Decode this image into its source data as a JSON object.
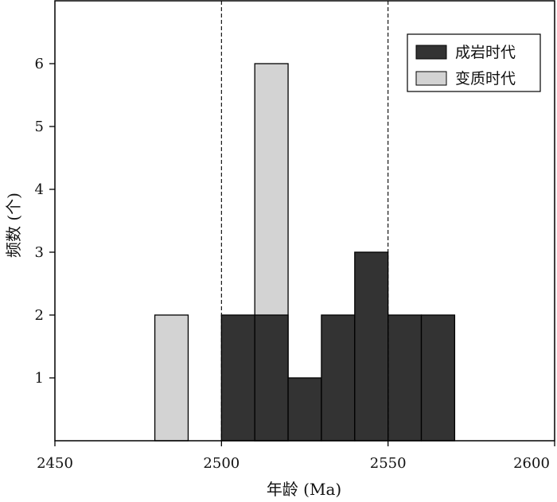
{
  "chart_data": {
    "type": "bar",
    "xlabel": "年龄 (Ma)",
    "ylabel": "频数 (个)",
    "xlim": [
      2450,
      2600
    ],
    "ylim": [
      0,
      7
    ],
    "xticks": [
      2450,
      2500,
      2550,
      2600
    ],
    "yticks": [
      1,
      2,
      3,
      4,
      5,
      6
    ],
    "reference_lines_x": [
      2500,
      2550
    ],
    "legend_position": "top-right",
    "grid": false,
    "series": [
      {
        "name": "成岩时代",
        "color": "#333333",
        "bins": [
          {
            "start": 2500,
            "end": 2510,
            "value": 2
          },
          {
            "start": 2510,
            "end": 2520,
            "value": 2
          },
          {
            "start": 2520,
            "end": 2530,
            "value": 1
          },
          {
            "start": 2530,
            "end": 2540,
            "value": 2
          },
          {
            "start": 2540,
            "end": 2550,
            "value": 3
          },
          {
            "start": 2550,
            "end": 2560,
            "value": 2
          },
          {
            "start": 2560,
            "end": 2570,
            "value": 2
          }
        ]
      },
      {
        "name": "变质时代",
        "color": "#d3d3d3",
        "bins": [
          {
            "start": 2480,
            "end": 2490,
            "value": 2
          },
          {
            "start": 2510,
            "end": 2520,
            "value": 6
          }
        ]
      }
    ]
  }
}
